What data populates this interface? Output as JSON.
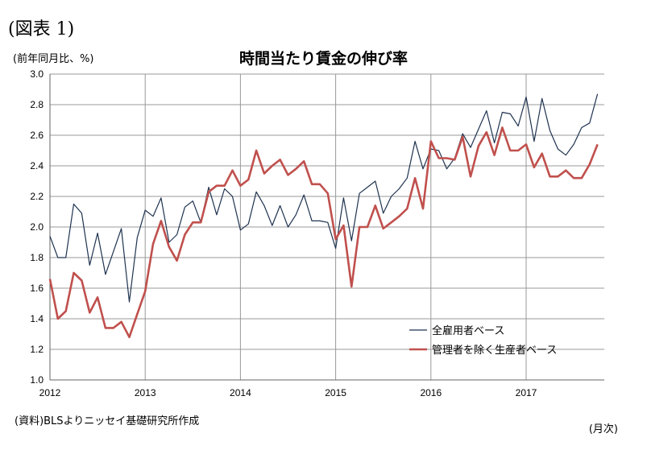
{
  "figure_label": "(図表 1)",
  "unit_label": "(前年同月比、%)",
  "source": "(資料)BLSよりニッセイ基礎研究所作成",
  "x_unit": "(月次)",
  "colors": {
    "all_employees": "#1f3350",
    "production_nonsupervisory": "#c0504d",
    "grid": "#999999"
  },
  "chart_data": {
    "type": "line",
    "title": "時間当たり賃金の伸び率",
    "xlabel": "(月次)",
    "ylabel": "(前年同月比、%)",
    "ylim": [
      1.0,
      3.0
    ],
    "yticks": [
      "1.0",
      "1.2",
      "1.4",
      "1.6",
      "1.8",
      "2.0",
      "2.2",
      "2.4",
      "2.6",
      "2.8",
      "3.0"
    ],
    "xticks": [
      "2012",
      "2013",
      "2014",
      "2015",
      "2016",
      "2017"
    ],
    "x_start": "2012-01",
    "grid": true,
    "legend_position": "bottom-right",
    "series": [
      {
        "name": "全雇用者ベース",
        "values": [
          1.94,
          1.8,
          1.8,
          2.15,
          2.09,
          1.75,
          1.96,
          1.69,
          1.84,
          1.99,
          1.51,
          1.93,
          2.11,
          2.07,
          2.19,
          1.9,
          1.95,
          2.13,
          2.17,
          2.03,
          2.26,
          2.08,
          2.25,
          2.2,
          1.98,
          2.02,
          2.23,
          2.14,
          2.01,
          2.14,
          2.0,
          2.08,
          2.21,
          2.04,
          2.04,
          2.03,
          1.86,
          2.19,
          1.91,
          2.22,
          2.26,
          2.3,
          2.09,
          2.2,
          2.25,
          2.32,
          2.56,
          2.38,
          2.51,
          2.5,
          2.38,
          2.45,
          2.61,
          2.52,
          2.64,
          2.76,
          2.55,
          2.75,
          2.74,
          2.66,
          2.85,
          2.56,
          2.84,
          2.63,
          2.51,
          2.47,
          2.54,
          2.65,
          2.68,
          2.87
        ]
      },
      {
        "name": "管理者を除く生産者ベース",
        "values": [
          1.66,
          1.4,
          1.45,
          1.7,
          1.65,
          1.44,
          1.54,
          1.34,
          1.34,
          1.38,
          1.28,
          1.43,
          1.58,
          1.89,
          2.04,
          1.87,
          1.78,
          1.95,
          2.03,
          2.03,
          2.23,
          2.27,
          2.27,
          2.37,
          2.27,
          2.31,
          2.5,
          2.35,
          2.4,
          2.44,
          2.34,
          2.38,
          2.43,
          2.28,
          2.28,
          2.22,
          1.92,
          2.01,
          1.61,
          2.0,
          2.0,
          2.14,
          1.99,
          2.03,
          2.07,
          2.12,
          2.32,
          2.12,
          2.56,
          2.45,
          2.45,
          2.44,
          2.59,
          2.33,
          2.53,
          2.62,
          2.47,
          2.65,
          2.5,
          2.5,
          2.54,
          2.39,
          2.48,
          2.33,
          2.33,
          2.37,
          2.32,
          2.32,
          2.41,
          2.54
        ]
      }
    ]
  }
}
